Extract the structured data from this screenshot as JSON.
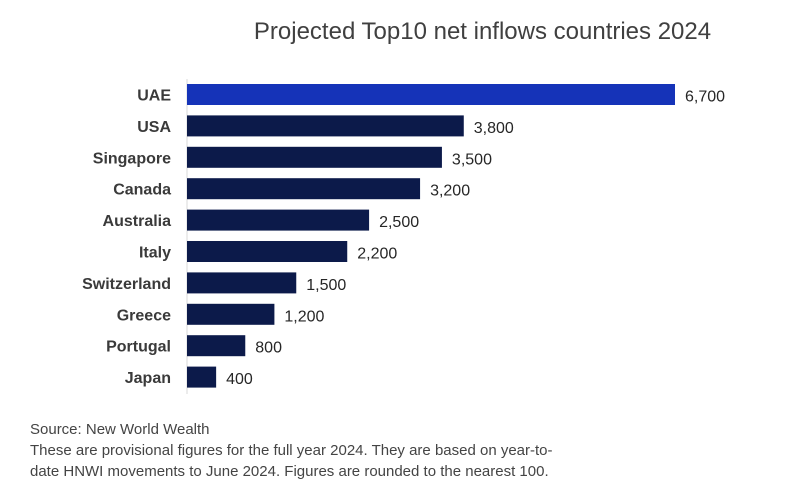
{
  "chart_data": {
    "type": "bar",
    "orientation": "horizontal",
    "title": "Projected Top10 net inflows countries 2024",
    "categories": [
      "UAE",
      "USA",
      "Singapore",
      "Canada",
      "Australia",
      "Italy",
      "Switzerland",
      "Greece",
      "Portugal",
      "Japan"
    ],
    "values": [
      6700,
      3800,
      3500,
      3200,
      2500,
      2200,
      1500,
      1200,
      800,
      400
    ],
    "value_labels": [
      "6,700",
      "3,800",
      "3,500",
      "3,200",
      "2,500",
      "2,200",
      "1,500",
      "1,200",
      "800",
      "400"
    ],
    "xlim": [
      0,
      6700
    ],
    "grid": false,
    "colors": {
      "highlight": "#1533b8",
      "default": "#0c1a4a"
    },
    "highlight_category": "UAE"
  },
  "footnotes": {
    "source": "Source: New World Wealth",
    "note_line1": "These are provisional figures for the full year 2024. They are based on year-to-",
    "note_line2": "date HNWI movements to June 2024. Figures are rounded to the nearest 100."
  }
}
